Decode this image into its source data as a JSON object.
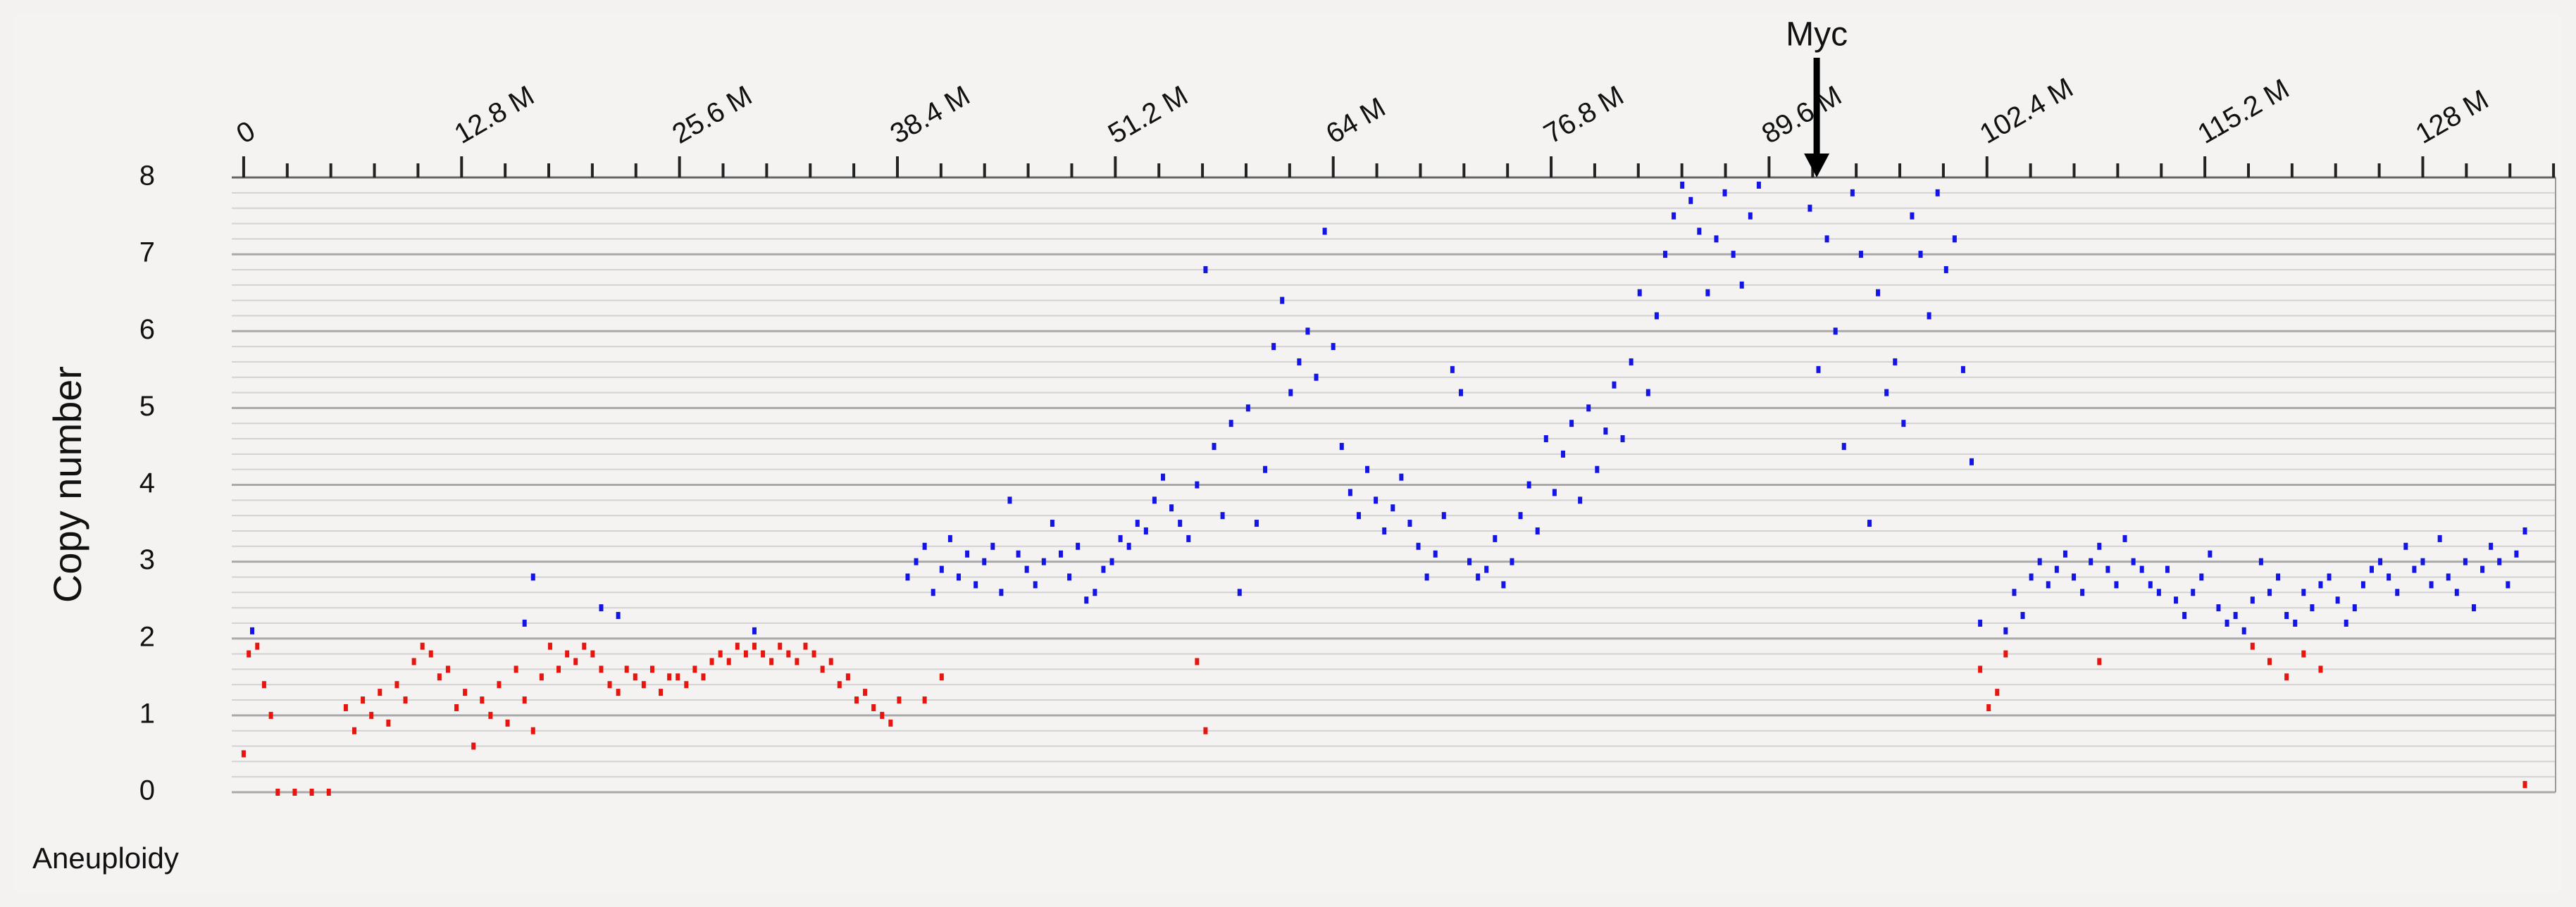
{
  "chart_data": {
    "type": "scatter",
    "y_label": "Copy number",
    "bottom_label": "Aneuploidy",
    "annotations": [
      {
        "text": "Myc",
        "x": 92.4
      }
    ],
    "xlim": [
      -0.7,
      135.8
    ],
    "ylim": [
      0,
      8
    ],
    "xticks": [
      0,
      {
        "value": 12.8,
        "label": "12.8 M"
      },
      {
        "value": 25.6,
        "label": "25.6 M"
      },
      {
        "value": 38.4,
        "label": "38.4 M"
      },
      {
        "value": 51.2,
        "label": "51.2 M"
      },
      {
        "value": 64,
        "label": "64 M"
      },
      {
        "value": 76.8,
        "label": "76.8 M"
      },
      {
        "value": 89.6,
        "label": "89.6 M"
      },
      {
        "value": 102.4,
        "label": "102.4 M"
      },
      {
        "value": 115.2,
        "label": "115.2 M"
      },
      {
        "value": 128,
        "label": "128 M"
      }
    ],
    "yticks": [
      0,
      1,
      2,
      3,
      4,
      5,
      6,
      7,
      8
    ],
    "grid": true,
    "series": [
      {
        "color": "#e8150e",
        "x": [
          0,
          0.3,
          0.8,
          1.2,
          1.6,
          2,
          3,
          4,
          5,
          6,
          6.5,
          7,
          7.5,
          8,
          8.5,
          9,
          9.5,
          10,
          10.5,
          11,
          11.5,
          12,
          12.5,
          13,
          13.5,
          14,
          14.5,
          15,
          15.5,
          16,
          16.5,
          17,
          17.5,
          18,
          18.5,
          19,
          19.5,
          20,
          20.5,
          21,
          21.5,
          22,
          22.5,
          23,
          23.5,
          24,
          24.5,
          25,
          25.5,
          26,
          26.5,
          27,
          27.5,
          28,
          28.5,
          29,
          29.5,
          30,
          30.5,
          31,
          31.5,
          32,
          32.5,
          33,
          33.5,
          34,
          34.5,
          35,
          35.5,
          36,
          36.5,
          37,
          37.5,
          38,
          38.5,
          40,
          41,
          56,
          56.5,
          102,
          102.5,
          103,
          103.5,
          109,
          118,
          119,
          120,
          121,
          122,
          134
        ],
        "values": [
          0.5,
          1.8,
          1.9,
          1.4,
          1.0,
          0,
          0,
          0,
          0,
          1.1,
          0.8,
          1.2,
          1.0,
          1.3,
          0.9,
          1.4,
          1.2,
          1.7,
          1.9,
          1.8,
          1.5,
          1.6,
          1.1,
          1.3,
          0.6,
          1.2,
          1.0,
          1.4,
          0.9,
          1.6,
          1.2,
          0.8,
          1.5,
          1.9,
          1.6,
          1.8,
          1.7,
          1.9,
          1.8,
          1.6,
          1.4,
          1.3,
          1.6,
          1.5,
          1.4,
          1.6,
          1.3,
          1.5,
          1.5,
          1.4,
          1.6,
          1.5,
          1.7,
          1.8,
          1.7,
          1.9,
          1.8,
          1.9,
          1.8,
          1.7,
          1.9,
          1.8,
          1.7,
          1.9,
          1.8,
          1.6,
          1.7,
          1.4,
          1.5,
          1.2,
          1.3,
          1.1,
          1.0,
          0.9,
          1.2,
          1.2,
          1.5,
          1.7,
          0.8,
          1.6,
          1.1,
          1.3,
          1.8,
          1.7,
          1.9,
          1.7,
          1.5,
          1.8,
          1.6,
          0.1
        ]
      },
      {
        "color": "#1414e6",
        "x": [
          0.5,
          16.5,
          17,
          21,
          22,
          30,
          39,
          39.5,
          40,
          40.5,
          41,
          41.5,
          42,
          42.5,
          43,
          43.5,
          44,
          44.5,
          45,
          45.5,
          46,
          46.5,
          47,
          47.5,
          48,
          48.5,
          49,
          49.5,
          50,
          50.5,
          51,
          51.5,
          52,
          52.5,
          53,
          53.5,
          54,
          54.5,
          55,
          55.5,
          56,
          56.5,
          57,
          57.5,
          58,
          58.5,
          59,
          59.5,
          60,
          60.5,
          61,
          61.5,
          62,
          62.5,
          63,
          63.5,
          64,
          64.5,
          65,
          65.5,
          66,
          66.5,
          67,
          67.5,
          68,
          68.5,
          69,
          69.5,
          70,
          70.5,
          71,
          71.5,
          72,
          72.5,
          73,
          73.5,
          74,
          74.5,
          75,
          75.5,
          76,
          76.5,
          77,
          77.5,
          78,
          78.5,
          79,
          79.5,
          80,
          80.5,
          81,
          81.5,
          82,
          82.5,
          83,
          83.5,
          84,
          84.5,
          85,
          85.5,
          86,
          86.5,
          87,
          87.5,
          88,
          88.5,
          89,
          92,
          92.5,
          93,
          93.5,
          94,
          94.5,
          95,
          95.5,
          96,
          96.5,
          97,
          97.5,
          98,
          98.5,
          99,
          99.5,
          100,
          100.5,
          101,
          101.5,
          102,
          103.5,
          104,
          104.5,
          105,
          105.5,
          106,
          106.5,
          107,
          107.5,
          108,
          108.5,
          109,
          109.5,
          110,
          110.5,
          111,
          111.5,
          112,
          112.5,
          113,
          113.5,
          114,
          114.5,
          115,
          115.5,
          116,
          116.5,
          117,
          117.5,
          118,
          118.5,
          119,
          119.5,
          120,
          120.5,
          121,
          121.5,
          122,
          122.5,
          123,
          123.5,
          124,
          124.5,
          125,
          125.5,
          126,
          126.5,
          127,
          127.5,
          128,
          128.5,
          129,
          129.5,
          130,
          130.5,
          131,
          131.5,
          132,
          132.5,
          133,
          133.5,
          134
        ],
        "values": [
          2.1,
          2.2,
          2.8,
          2.4,
          2.3,
          2.1,
          2.8,
          3.0,
          3.2,
          2.6,
          2.9,
          3.3,
          2.8,
          3.1,
          2.7,
          3.0,
          3.2,
          2.6,
          3.8,
          3.1,
          2.9,
          2.7,
          3.0,
          3.5,
          3.1,
          2.8,
          3.2,
          2.5,
          2.6,
          2.9,
          3.0,
          3.3,
          3.2,
          3.5,
          3.4,
          3.8,
          4.1,
          3.7,
          3.5,
          3.3,
          4.0,
          6.8,
          4.5,
          3.6,
          4.8,
          2.6,
          5.0,
          3.5,
          4.2,
          5.8,
          6.4,
          5.2,
          5.6,
          6.0,
          5.4,
          7.3,
          5.8,
          4.5,
          3.9,
          3.6,
          4.2,
          3.8,
          3.4,
          3.7,
          4.1,
          3.5,
          3.2,
          2.8,
          3.1,
          3.6,
          5.5,
          5.2,
          3.0,
          2.8,
          2.9,
          3.3,
          2.7,
          3.0,
          3.6,
          4.0,
          3.4,
          4.6,
          3.9,
          4.4,
          4.8,
          3.8,
          5.0,
          4.2,
          4.7,
          5.3,
          4.6,
          5.6,
          6.5,
          5.2,
          6.2,
          7.0,
          7.5,
          7.9,
          7.7,
          7.3,
          6.5,
          7.2,
          7.8,
          7.0,
          6.6,
          7.5,
          7.9,
          7.6,
          5.5,
          7.2,
          6.0,
          4.5,
          7.8,
          7.0,
          3.5,
          6.5,
          5.2,
          5.6,
          4.8,
          7.5,
          7.0,
          6.2,
          7.8,
          6.8,
          7.2,
          5.5,
          4.3,
          2.2,
          2.1,
          2.6,
          2.3,
          2.8,
          3.0,
          2.7,
          2.9,
          3.1,
          2.8,
          2.6,
          3.0,
          3.2,
          2.9,
          2.7,
          3.3,
          3.0,
          2.9,
          2.7,
          2.6,
          2.9,
          2.5,
          2.3,
          2.6,
          2.8,
          3.1,
          2.4,
          2.2,
          2.3,
          2.1,
          2.5,
          3.0,
          2.6,
          2.8,
          2.3,
          2.2,
          2.6,
          2.4,
          2.7,
          2.8,
          2.5,
          2.2,
          2.4,
          2.7,
          2.9,
          3.0,
          2.8,
          2.6,
          3.2,
          2.9,
          3.0,
          2.7,
          3.3,
          2.8,
          2.6,
          3.0,
          2.4,
          2.9,
          3.2,
          3.0,
          2.7,
          3.1,
          3.4
        ]
      }
    ]
  }
}
